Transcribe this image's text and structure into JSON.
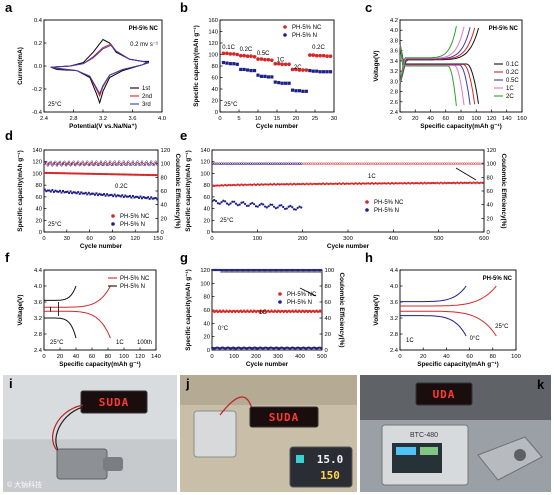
{
  "chart_data": [
    {
      "panel": "a",
      "type": "line",
      "tag": "PH-5% NC",
      "note": "0.2 mv s⁻¹",
      "temp": "25°C",
      "xlabel": "Potential(V vs.Na/Na⁺)",
      "ylabel": "Current(mA)",
      "xlim": [
        2.4,
        4.2
      ],
      "ylim": [
        -0.4,
        0.4
      ],
      "xticks": [
        "2.4",
        "2.8",
        "3.2",
        "3.6",
        "4.0"
      ],
      "yticks": [
        "-0.4",
        "-0.2",
        "0.0",
        "0.2",
        "0.4"
      ],
      "legend": [
        "1st",
        "2nd",
        "3rd"
      ],
      "colors": [
        "#000000",
        "#d62728",
        "#3b3bb0"
      ],
      "series": [
        {
          "name": "1st",
          "x": [
            2.5,
            2.8,
            3.0,
            3.15,
            3.3,
            3.4,
            3.5,
            3.7,
            3.9,
            4.0,
            3.9,
            3.6,
            3.4,
            3.3,
            3.25,
            3.2,
            3.1,
            2.9,
            2.6,
            2.5
          ],
          "y": [
            -0.01,
            0.0,
            0.03,
            0.12,
            0.23,
            0.2,
            0.12,
            0.06,
            0.04,
            0.04,
            0.01,
            -0.04,
            -0.1,
            -0.22,
            -0.32,
            -0.24,
            -0.1,
            -0.04,
            -0.03,
            -0.01
          ]
        },
        {
          "name": "2nd",
          "x": [
            2.5,
            2.8,
            3.0,
            3.15,
            3.3,
            3.42,
            3.5,
            3.7,
            3.9,
            4.0,
            3.9,
            3.6,
            3.4,
            3.3,
            3.25,
            3.2,
            3.1,
            2.9,
            2.6,
            2.5
          ],
          "y": [
            -0.01,
            0.0,
            0.02,
            0.08,
            0.16,
            0.19,
            0.13,
            0.06,
            0.04,
            0.03,
            0.01,
            -0.03,
            -0.08,
            -0.18,
            -0.26,
            -0.2,
            -0.09,
            -0.04,
            -0.02,
            -0.01
          ]
        },
        {
          "name": "3rd",
          "x": [
            2.5,
            2.8,
            3.0,
            3.15,
            3.3,
            3.42,
            3.5,
            3.7,
            3.9,
            4.0,
            3.9,
            3.6,
            3.4,
            3.3,
            3.25,
            3.2,
            3.1,
            2.9,
            2.6,
            2.5
          ],
          "y": [
            -0.01,
            0.0,
            0.02,
            0.07,
            0.15,
            0.18,
            0.13,
            0.06,
            0.04,
            0.03,
            0.01,
            -0.03,
            -0.08,
            -0.17,
            -0.24,
            -0.19,
            -0.09,
            -0.04,
            -0.02,
            -0.01
          ]
        }
      ]
    },
    {
      "panel": "b",
      "type": "scatter",
      "temp": "25°C",
      "xlabel": "Cycle number",
      "ylabel": "Specific capacity(mAh g⁻¹)",
      "xlim": [
        0,
        33
      ],
      "ylim": [
        0,
        160
      ],
      "xticks": [
        "0",
        "5",
        "10",
        "15",
        "20",
        "25",
        "30"
      ],
      "yticks": [
        "0",
        "20",
        "40",
        "60",
        "80",
        "100",
        "120",
        "140",
        "160"
      ],
      "legend": [
        "PH-5% NC",
        "PH-5% N"
      ],
      "rate_labels": [
        {
          "text": "0.1C",
          "x": 2.5,
          "y": 110
        },
        {
          "text": "0.2C",
          "x": 7.5,
          "y": 106
        },
        {
          "text": "0.5C",
          "x": 12.5,
          "y": 99
        },
        {
          "text": "1C",
          "x": 17.5,
          "y": 88
        },
        {
          "text": "2C",
          "x": 22.5,
          "y": 75
        },
        {
          "text": "0.2C",
          "x": 28.5,
          "y": 110
        }
      ],
      "series": [
        {
          "name": "PH-5% NC",
          "color": "#d62728",
          "y": [
            102,
            102,
            101,
            101,
            100,
            98,
            98,
            97,
            97,
            96,
            92,
            92,
            91,
            91,
            90,
            84,
            84,
            83,
            83,
            83,
            74,
            74,
            73,
            73,
            73,
            99,
            99,
            98,
            98,
            98,
            97,
            97
          ]
        },
        {
          "name": "PH-5% N",
          "color": "#1f1f8a",
          "y": [
            86,
            85,
            84,
            84,
            83,
            74,
            74,
            73,
            72,
            72,
            64,
            62,
            62,
            61,
            61,
            52,
            51,
            50,
            50,
            50,
            38,
            37,
            37,
            36,
            36,
            72,
            71,
            71,
            70,
            70,
            70,
            70
          ]
        }
      ]
    },
    {
      "panel": "c",
      "type": "line",
      "tag": "PH-5% NC",
      "xlabel": "Specific capacity(mAh g⁻¹)",
      "ylabel": "Voltage(V)",
      "xlim": [
        0,
        160
      ],
      "ylim": [
        2.4,
        4.2
      ],
      "xticks": [
        "0",
        "20",
        "40",
        "60",
        "80",
        "100",
        "120",
        "140",
        "160"
      ],
      "yticks": [
        "2.4",
        "2.6",
        "2.8",
        "3.0",
        "3.2",
        "3.4",
        "3.6",
        "3.8",
        "4.0",
        "4.2"
      ],
      "legend": [
        "0.1C",
        "0.2C",
        "0.5C",
        "1C",
        "2C"
      ],
      "series": [
        {
          "name": "0.1C",
          "color": "#111111",
          "cap": 103
        },
        {
          "name": "0.2C",
          "color": "#d62728",
          "cap": 98
        },
        {
          "name": "0.5C",
          "color": "#3b3bb0",
          "cap": 92
        },
        {
          "name": "1C",
          "color": "#e377c2",
          "cap": 84
        },
        {
          "name": "2C",
          "color": "#2ca02c",
          "cap": 74
        }
      ]
    },
    {
      "panel": "d",
      "type": "scatter",
      "rate": "0.2C",
      "temp": "25°C",
      "xlabel": "Cycle number",
      "ylabel": "Specific capacity(mAh g⁻¹)",
      "y2label": "Coulombic Efficiency(%)",
      "xlim": [
        0,
        150
      ],
      "ylim": [
        0,
        140
      ],
      "y2lim": [
        0,
        120
      ],
      "xticks": [
        "0",
        "30",
        "60",
        "90",
        "120",
        "150"
      ],
      "yticks": [
        "0",
        "20",
        "40",
        "60",
        "80",
        "100",
        "120",
        "140"
      ],
      "y2ticks": [
        "0",
        "20",
        "40",
        "60",
        "80",
        "100",
        "120"
      ],
      "legend": [
        "PH-5% NC",
        "PH-5% N"
      ],
      "series": [
        {
          "name": "PH-5% NC",
          "color": "#d62728",
          "start": 101,
          "end": 97,
          "ce": 100
        },
        {
          "name": "PH-5% N",
          "color": "#1f1f8a",
          "start": 71,
          "end": 57,
          "ce": 100
        }
      ]
    },
    {
      "panel": "e",
      "type": "scatter",
      "rate": "1C",
      "temp": "25°C",
      "xlabel": "Cycle number",
      "ylabel": "Specific capacity(mAh g⁻¹)",
      "y2label": "Coulombic Efficiency(%)",
      "xlim": [
        0,
        600
      ],
      "ylim": [
        0,
        140
      ],
      "y2lim": [
        0,
        120
      ],
      "xticks": [
        "0",
        "100",
        "200",
        "300",
        "400",
        "500",
        "600"
      ],
      "yticks": [
        "0",
        "20",
        "40",
        "60",
        "80",
        "100",
        "120",
        "140"
      ],
      "y2ticks": [
        "0",
        "20",
        "40",
        "60",
        "80",
        "100",
        "120"
      ],
      "legend": [
        "PH-5% NC",
        "PH-5% N"
      ],
      "series": [
        {
          "name": "PH-5% NC",
          "color": "#d62728",
          "start": 78,
          "end": 84,
          "cycles": 600,
          "ce": 100
        },
        {
          "name": "PH-5% N",
          "color": "#1f1f8a",
          "start": 52,
          "end": 40,
          "cycles": 200,
          "ce": 100
        }
      ]
    },
    {
      "panel": "f",
      "type": "line",
      "temp": "25°C",
      "rate": "1C",
      "cycle": "100th",
      "xlabel": "Specific capacity(mAh g⁻¹)",
      "ylabel": "Voltage(V)",
      "xlim": [
        0,
        140
      ],
      "ylim": [
        2.4,
        4.4
      ],
      "xticks": [
        "0",
        "20",
        "40",
        "60",
        "80",
        "100",
        "120",
        "140"
      ],
      "yticks": [
        "2.4",
        "2.8",
        "3.2",
        "3.6",
        "4.0",
        "4.4"
      ],
      "legend": [
        "PH-5% NC",
        "PH-5% N"
      ],
      "series": [
        {
          "name": "PH-5% NC",
          "color": "#d62728",
          "cap": 83
        },
        {
          "name": "PH-5% N",
          "color": "#111111",
          "cap": 40
        }
      ]
    },
    {
      "panel": "g",
      "type": "scatter",
      "rate": "1C",
      "temp": "0°C",
      "xlabel": "Cycle number",
      "ylabel": "Specific capacity(mAh g⁻¹)",
      "y2label": "Coulombic Efficiency(%)",
      "xlim": [
        0,
        500
      ],
      "ylim": [
        0,
        120
      ],
      "y2lim": [
        0,
        100
      ],
      "xticks": [
        "0",
        "100",
        "200",
        "300",
        "400",
        "500"
      ],
      "yticks": [
        "0",
        "20",
        "40",
        "60",
        "80",
        "100",
        "120"
      ],
      "y2ticks": [
        "0",
        "20",
        "40",
        "60",
        "80",
        "100"
      ],
      "legend": [
        "PH-5% NC",
        "PH-5% N"
      ],
      "series": [
        {
          "name": "PH-5% NC",
          "color": "#d62728",
          "cap": 58,
          "ce": 98
        },
        {
          "name": "PH-5% N",
          "color": "#1f1f8a",
          "cap": 3,
          "ce": 100
        }
      ]
    },
    {
      "panel": "h",
      "type": "line",
      "tag": "PH-5% NC",
      "rate": "1C",
      "xlabel": "Specific capacity(mAh g⁻¹)",
      "ylabel": "Voltage(V)",
      "xlim": [
        0,
        100
      ],
      "ylim": [
        2.4,
        4.4
      ],
      "xticks": [
        "0",
        "20",
        "40",
        "60",
        "80",
        "100"
      ],
      "yticks": [
        "2.4",
        "2.8",
        "3.2",
        "3.6",
        "4.0",
        "4.4"
      ],
      "curve_labels": [
        {
          "text": "0°C",
          "color": "#1f1f8a"
        },
        {
          "text": "25°C",
          "color": "#d62728"
        }
      ],
      "series": [
        {
          "name": "0°C",
          "color": "#1f1f8a",
          "cap": 57
        },
        {
          "name": "25°C",
          "color": "#d62728",
          "cap": 83
        }
      ]
    }
  ],
  "photos": [
    {
      "panel": "i",
      "display": "SUDA"
    },
    {
      "panel": "j",
      "display": "SUDA",
      "meter_value_1": "15.0",
      "meter_value_2": "150"
    },
    {
      "panel": "k",
      "display": "UDA",
      "device_label": "BTC-480"
    }
  ],
  "watermark": "© 大钠科技"
}
